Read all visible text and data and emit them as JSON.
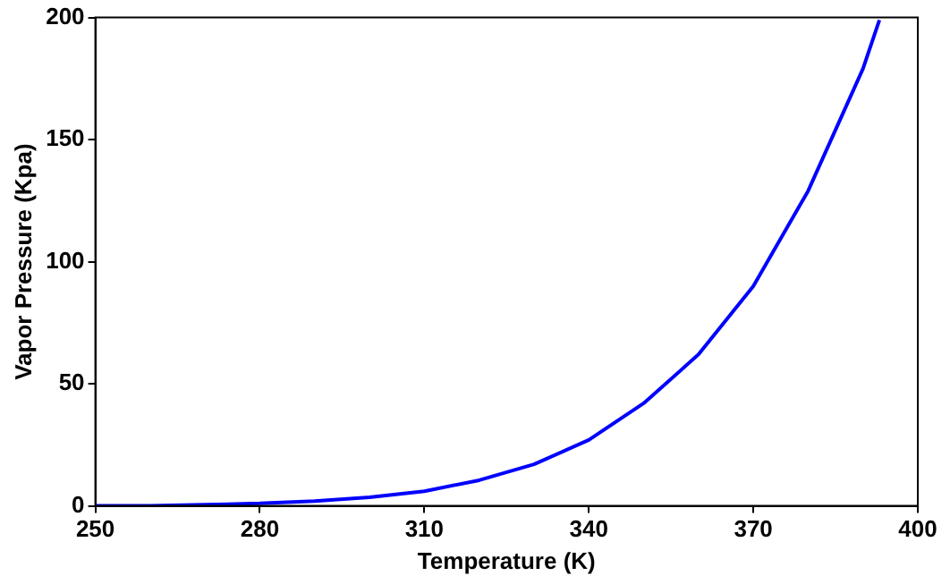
{
  "chart_data": {
    "type": "line",
    "xlabel": "Temperature (K)",
    "ylabel": "Vapor Pressure (Kpa)",
    "x": [
      250,
      260,
      270,
      280,
      290,
      300,
      310,
      320,
      330,
      340,
      350,
      360,
      370,
      380,
      390,
      393
    ],
    "series": [
      {
        "color": "#0000ff",
        "values": [
          0,
          0,
          0.5,
          1,
          2,
          3.5,
          6,
          10.5,
          17,
          27,
          42,
          62,
          90,
          129,
          179,
          199
        ]
      }
    ],
    "xlim": [
      250,
      400
    ],
    "xticks": [
      250,
      280,
      310,
      340,
      370,
      400
    ],
    "ylim": [
      0,
      200
    ],
    "yticks": [
      0,
      50,
      100,
      150,
      200
    ],
    "grid": false,
    "legend": false,
    "marker": "none",
    "line_style": "solid"
  }
}
